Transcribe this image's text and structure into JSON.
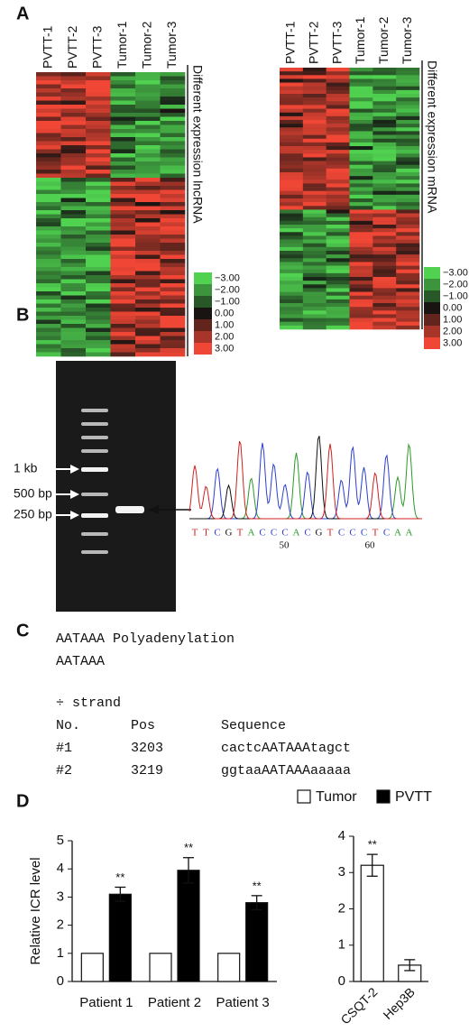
{
  "panel_labels": [
    "A",
    "B",
    "C",
    "D"
  ],
  "heatmaps": [
    {
      "columns": [
        "PVTT-1",
        "PVTT-2",
        "PVTT-3",
        "Tumor-1",
        "Tumor-2",
        "Tumor-3"
      ],
      "label": "Different expression lncRNA",
      "scale_labels": [
        "−3.00",
        "−2.00",
        "−1.00",
        "0.00",
        "1.00",
        "2.00",
        "3.00"
      ]
    },
    {
      "columns": [
        "PVTT-1",
        "PVTT-2",
        "PVTT-3",
        "Tumor-1",
        "Tumor-2",
        "Tumor-3"
      ],
      "label": "Different expression mRNA",
      "scale_labels": [
        "−3.00",
        "−2.00",
        "−1.00",
        "0.00",
        "1.00",
        "2.00",
        "3.00"
      ]
    }
  ],
  "gel": {
    "markers": [
      "1 kb",
      "500 bp",
      "250 bp"
    ],
    "sequence": "TTCGTACCCACGTCCCTCAA",
    "positions": [
      "50",
      "60"
    ]
  },
  "motif": {
    "lines": [
      "AATAAA Polyadenylation",
      "AATAAA"
    ],
    "strand": "÷ strand",
    "headers": [
      "No.",
      "Pos",
      "Sequence"
    ],
    "rows": [
      [
        "#1",
        "3203",
        "cactcAATAAAtagct"
      ],
      [
        "#2",
        "3219",
        "ggtaaAATAAAaaaaa"
      ]
    ]
  },
  "chart_data": [
    {
      "type": "bar",
      "ylabel": "Relative ICR level",
      "legend": "top",
      "categories": [
        "Patient 1",
        "Patient 2",
        "Patient 3"
      ],
      "series": [
        {
          "name": "Tumor",
          "color": "#ffffff",
          "values": [
            1,
            1,
            1
          ]
        },
        {
          "name": "PVTT",
          "color": "#000000",
          "values": [
            3.1,
            3.95,
            2.8
          ],
          "errors": [
            0.25,
            0.45,
            0.25
          ],
          "significance": [
            "**",
            "**",
            "**"
          ]
        }
      ],
      "ylim": [
        0,
        5
      ],
      "yticks": [
        0,
        1,
        2,
        3,
        4,
        5
      ]
    },
    {
      "type": "bar",
      "categories": [
        "CSQT-2",
        "Hep3B"
      ],
      "series": [
        {
          "color": "#ffffff",
          "values": [
            3.2,
            0.45
          ],
          "errors": [
            0.3,
            0.15
          ],
          "significance": [
            "**",
            null
          ]
        }
      ],
      "ylim": [
        0,
        4
      ],
      "yticks": [
        0,
        1,
        2,
        3,
        4
      ]
    }
  ]
}
